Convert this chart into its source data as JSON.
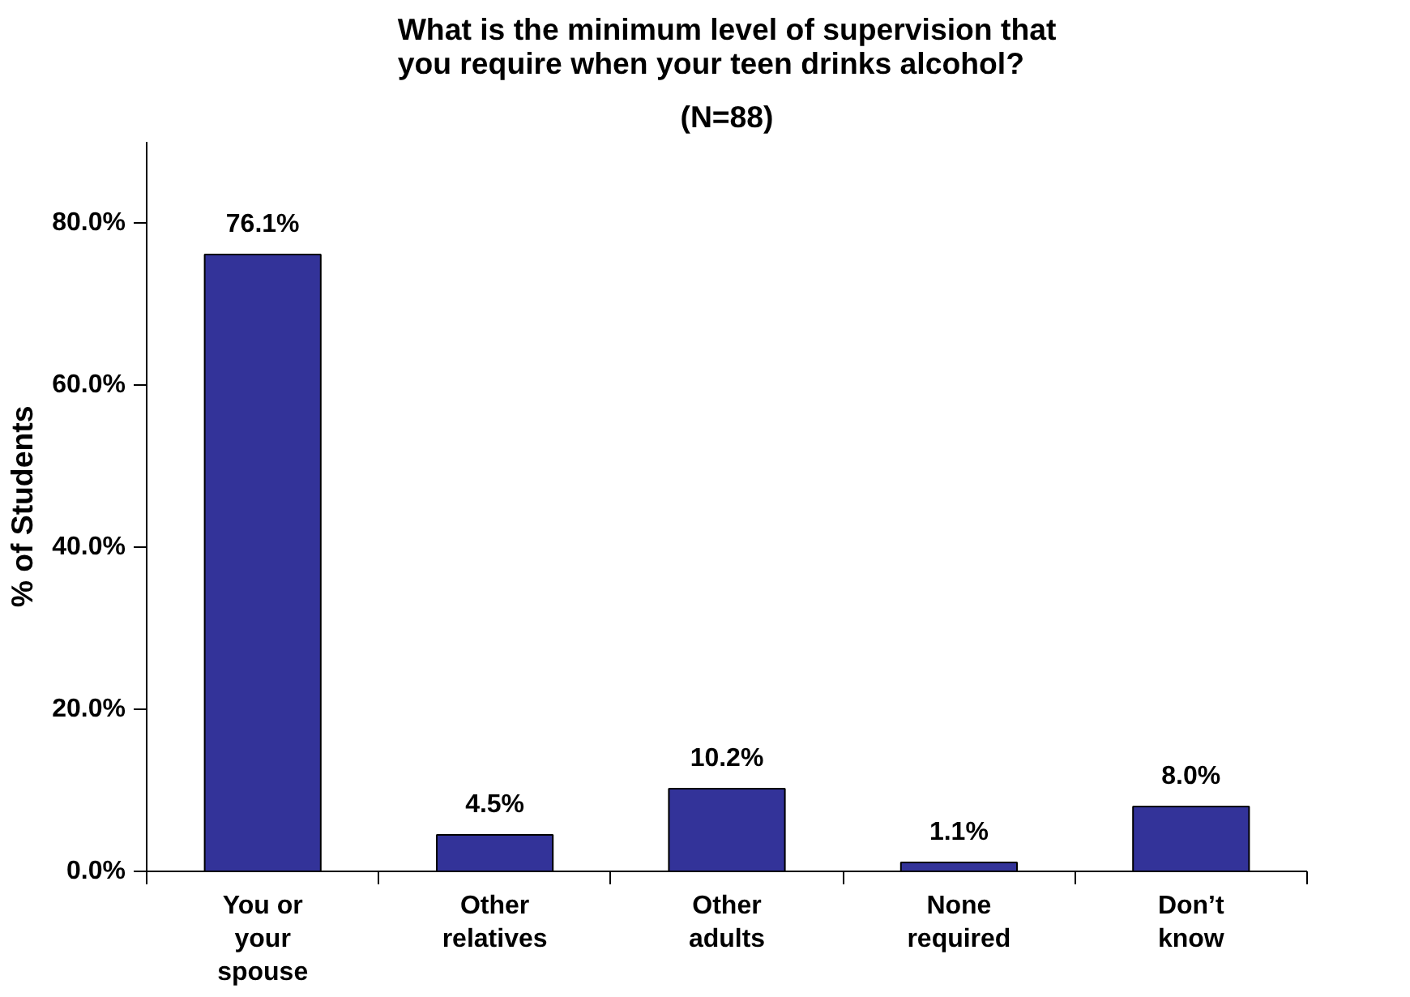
{
  "chart_data": {
    "type": "bar",
    "title": "What is the minimum level of supervision that you require when your teen drinks alcohol?",
    "subtitle": "(N=88)",
    "ylabel": "% of Students",
    "categories": [
      "You or your spouse",
      "Other relatives",
      "Other adults",
      "None required",
      "Don’t know"
    ],
    "values": [
      76.1,
      4.5,
      10.2,
      1.1,
      8.0
    ],
    "color": "#333399",
    "value_labels": [
      "76.1%",
      "4.5%",
      "10.2%",
      "1.1%",
      "8.0%"
    ],
    "ylim": [
      0,
      90
    ],
    "yticks": [
      {
        "value": 0,
        "label": "0.0%"
      },
      {
        "value": 20,
        "label": "20.0%"
      },
      {
        "value": 40,
        "label": "40.0%"
      },
      {
        "value": 60,
        "label": "60.0%"
      },
      {
        "value": 80,
        "label": "80.0%"
      }
    ],
    "grid": false
  }
}
